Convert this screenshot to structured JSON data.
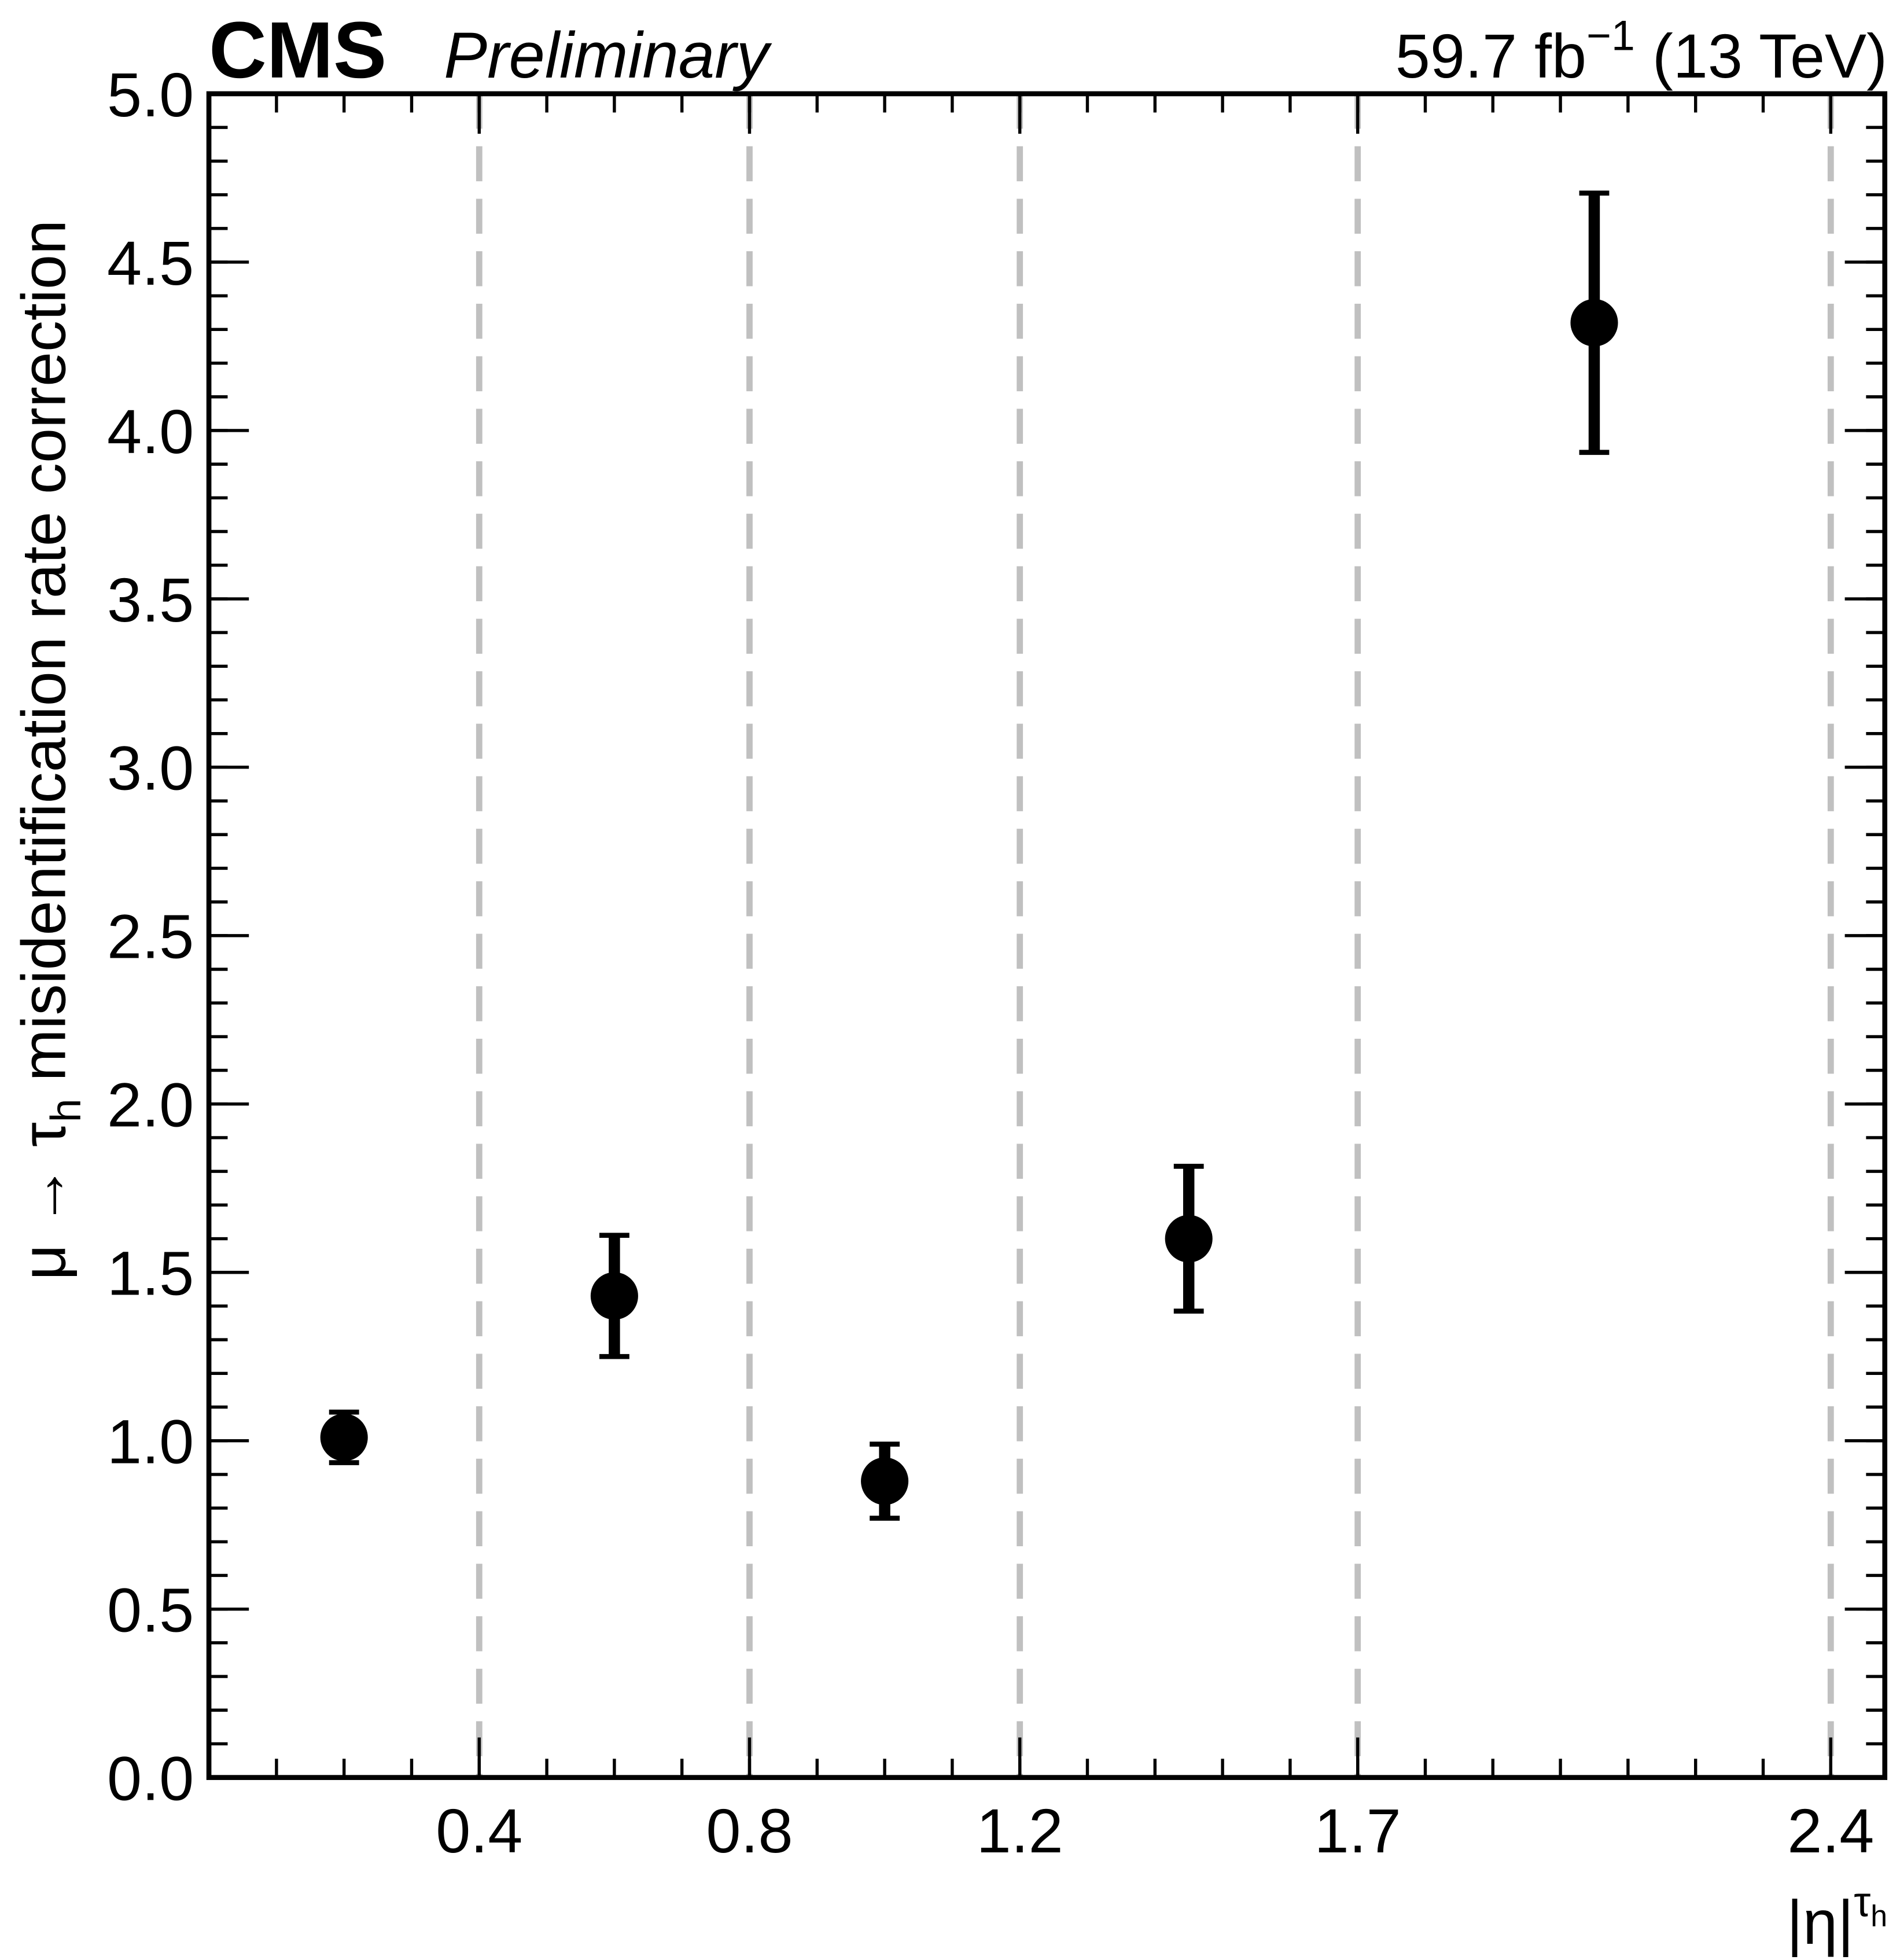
{
  "chart_data": {
    "type": "scatter",
    "experiment": "CMS",
    "status": "Preliminary",
    "lumi": {
      "value": "59.7 fb",
      "exponent": "−1",
      "energy": " (13 TeV)"
    },
    "y_label": {
      "prefix": "μ → τ",
      "sub": "h",
      "suffix": " misidentification rate correction"
    },
    "x_label": {
      "base": "|η|",
      "sup": "τ",
      "sup_sub": "h"
    },
    "xlim": [
      0,
      2.48
    ],
    "ylim": [
      0,
      5
    ],
    "xticks": [
      0.4,
      0.8,
      1.2,
      1.7,
      2.4
    ],
    "yticks": [
      {
        "value": 0,
        "label": "0.0"
      },
      {
        "value": 0.5,
        "label": "0.5"
      },
      {
        "value": 1,
        "label": "1.0"
      },
      {
        "value": 1.5,
        "label": "1.5"
      },
      {
        "value": 2,
        "label": "2.0"
      },
      {
        "value": 2.5,
        "label": "2.5"
      },
      {
        "value": 3,
        "label": "3.0"
      },
      {
        "value": 3.5,
        "label": "3.5"
      },
      {
        "value": 4,
        "label": "4.0"
      },
      {
        "value": 4.5,
        "label": "4.5"
      },
      {
        "value": 5,
        "label": "5.0"
      }
    ],
    "x_minor_step": 0.1,
    "y_minor_step": 0.1,
    "dashed_lines": [
      0.4,
      0.8,
      1.2,
      1.7,
      2.4
    ],
    "dashed_color": "#c0c0c0",
    "series": [
      {
        "color": "#000000",
        "x": [
          0.2,
          0.6,
          1.0,
          1.45,
          2.05
        ],
        "values": [
          1.01,
          1.43,
          0.88,
          1.6,
          4.32
        ],
        "errors": [
          0.075,
          0.18,
          0.11,
          0.215,
          0.385
        ]
      }
    ]
  }
}
